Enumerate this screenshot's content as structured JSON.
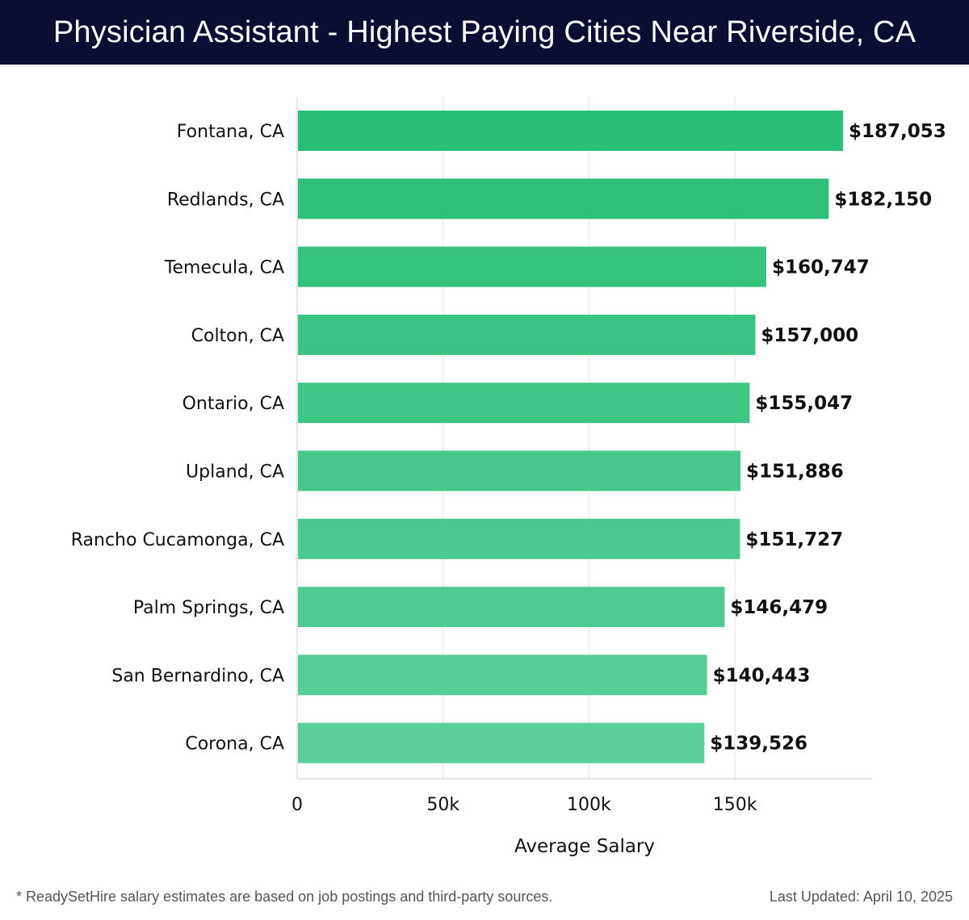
{
  "header": {
    "title": "Physician Assistant - Highest Paying Cities Near Riverside, CA"
  },
  "chart_data": {
    "type": "bar",
    "orientation": "horizontal",
    "title": "Physician Assistant - Highest Paying Cities Near Riverside, CA",
    "xlabel": "Average Salary",
    "ylabel": "",
    "xlim": [
      0,
      197000
    ],
    "x_ticks": [
      0,
      50000,
      100000,
      150000
    ],
    "x_tick_labels": [
      "0",
      "50k",
      "100k",
      "150k"
    ],
    "grid": "vertical",
    "categories": [
      "Fontana, CA",
      "Redlands, CA",
      "Temecula, CA",
      "Colton, CA",
      "Ontario, CA",
      "Upland, CA",
      "Rancho Cucamonga, CA",
      "Palm Springs, CA",
      "San Bernardino, CA",
      "Corona, CA"
    ],
    "values": [
      187053,
      182150,
      160747,
      157000,
      155047,
      151886,
      151727,
      146479,
      140443,
      139526
    ],
    "data_labels": [
      "$187,053",
      "$182,150",
      "$160,747",
      "$157,000",
      "$155,047",
      "$151,886",
      "$151,727",
      "$146,479",
      "$140,443",
      "$139,526"
    ],
    "colors": {
      "bar_top": "#2abf78",
      "bar_bottom": "#5acf99",
      "grid": "#e2e2e2",
      "axis": "#cccccc"
    }
  },
  "footer": {
    "note": "* ReadySetHire salary estimates are based on job postings and third-party sources.",
    "updated": "Last Updated: April 10, 2025"
  }
}
